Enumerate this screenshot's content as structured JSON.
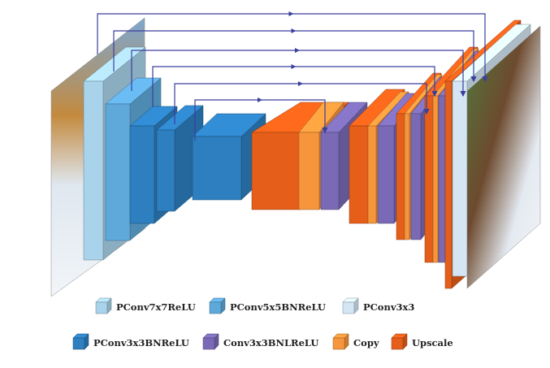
{
  "legend": [
    {
      "label": "PConv7x7ReLU",
      "color": "#a9d3ea"
    },
    {
      "label": "PConv5x5BNReLU",
      "color": "#5fa9da"
    },
    {
      "label": "PConv3x3",
      "color": "#d4e5f4"
    },
    {
      "label": "PConv3x3BNReLU",
      "color": "#2d7fc0"
    },
    {
      "label": "Conv3x3BNLReLU",
      "color": "#7a6ab6"
    },
    {
      "label": "Copy",
      "color": "#f7953c"
    },
    {
      "label": "Upscale",
      "color": "#e65f1a"
    }
  ]
}
